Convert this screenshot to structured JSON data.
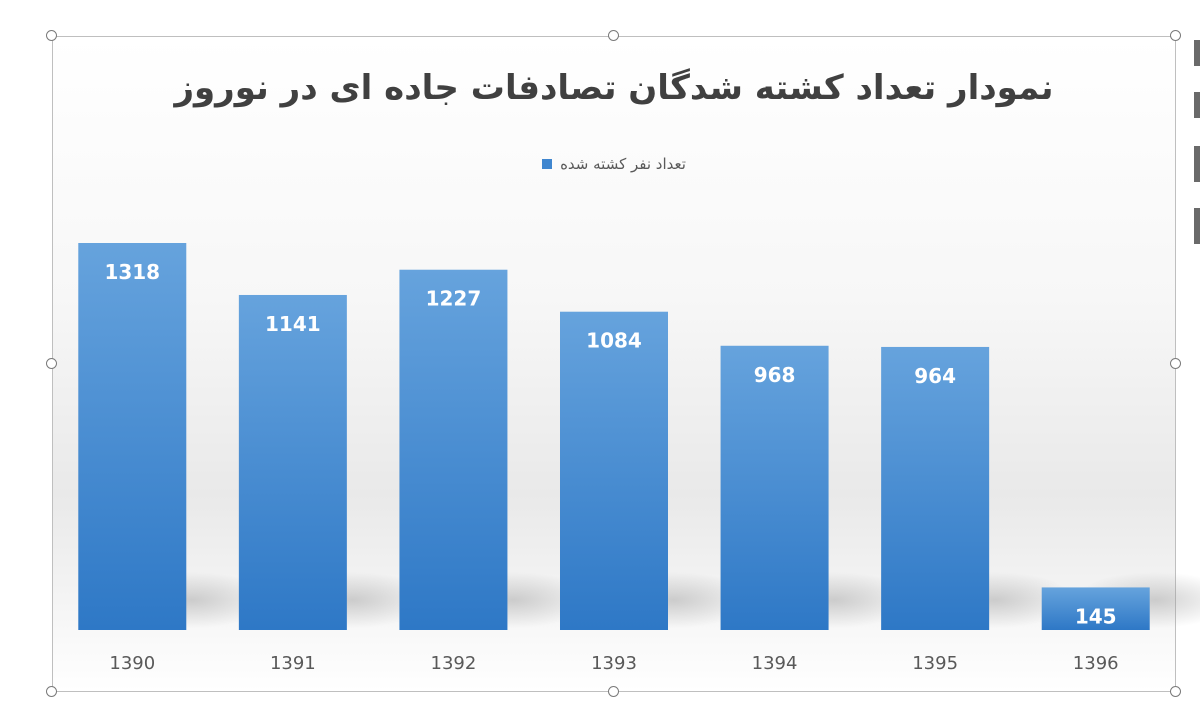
{
  "chart_data": {
    "type": "bar",
    "title": "نمودار تعداد کشته شدگان تصادفات جاده ای در نوروز",
    "categories": [
      "1390",
      "1391",
      "1392",
      "1393",
      "1394",
      "1395",
      "1396"
    ],
    "series": [
      {
        "name": "تعداد نفر کشته شده",
        "values": [
          1318,
          1141,
          1227,
          1084,
          968,
          964,
          145
        ]
      }
    ],
    "data_labels": true,
    "legend_position": "top",
    "grid": false,
    "ylim": [
      0,
      1318
    ],
    "color": "#3f86cf"
  }
}
